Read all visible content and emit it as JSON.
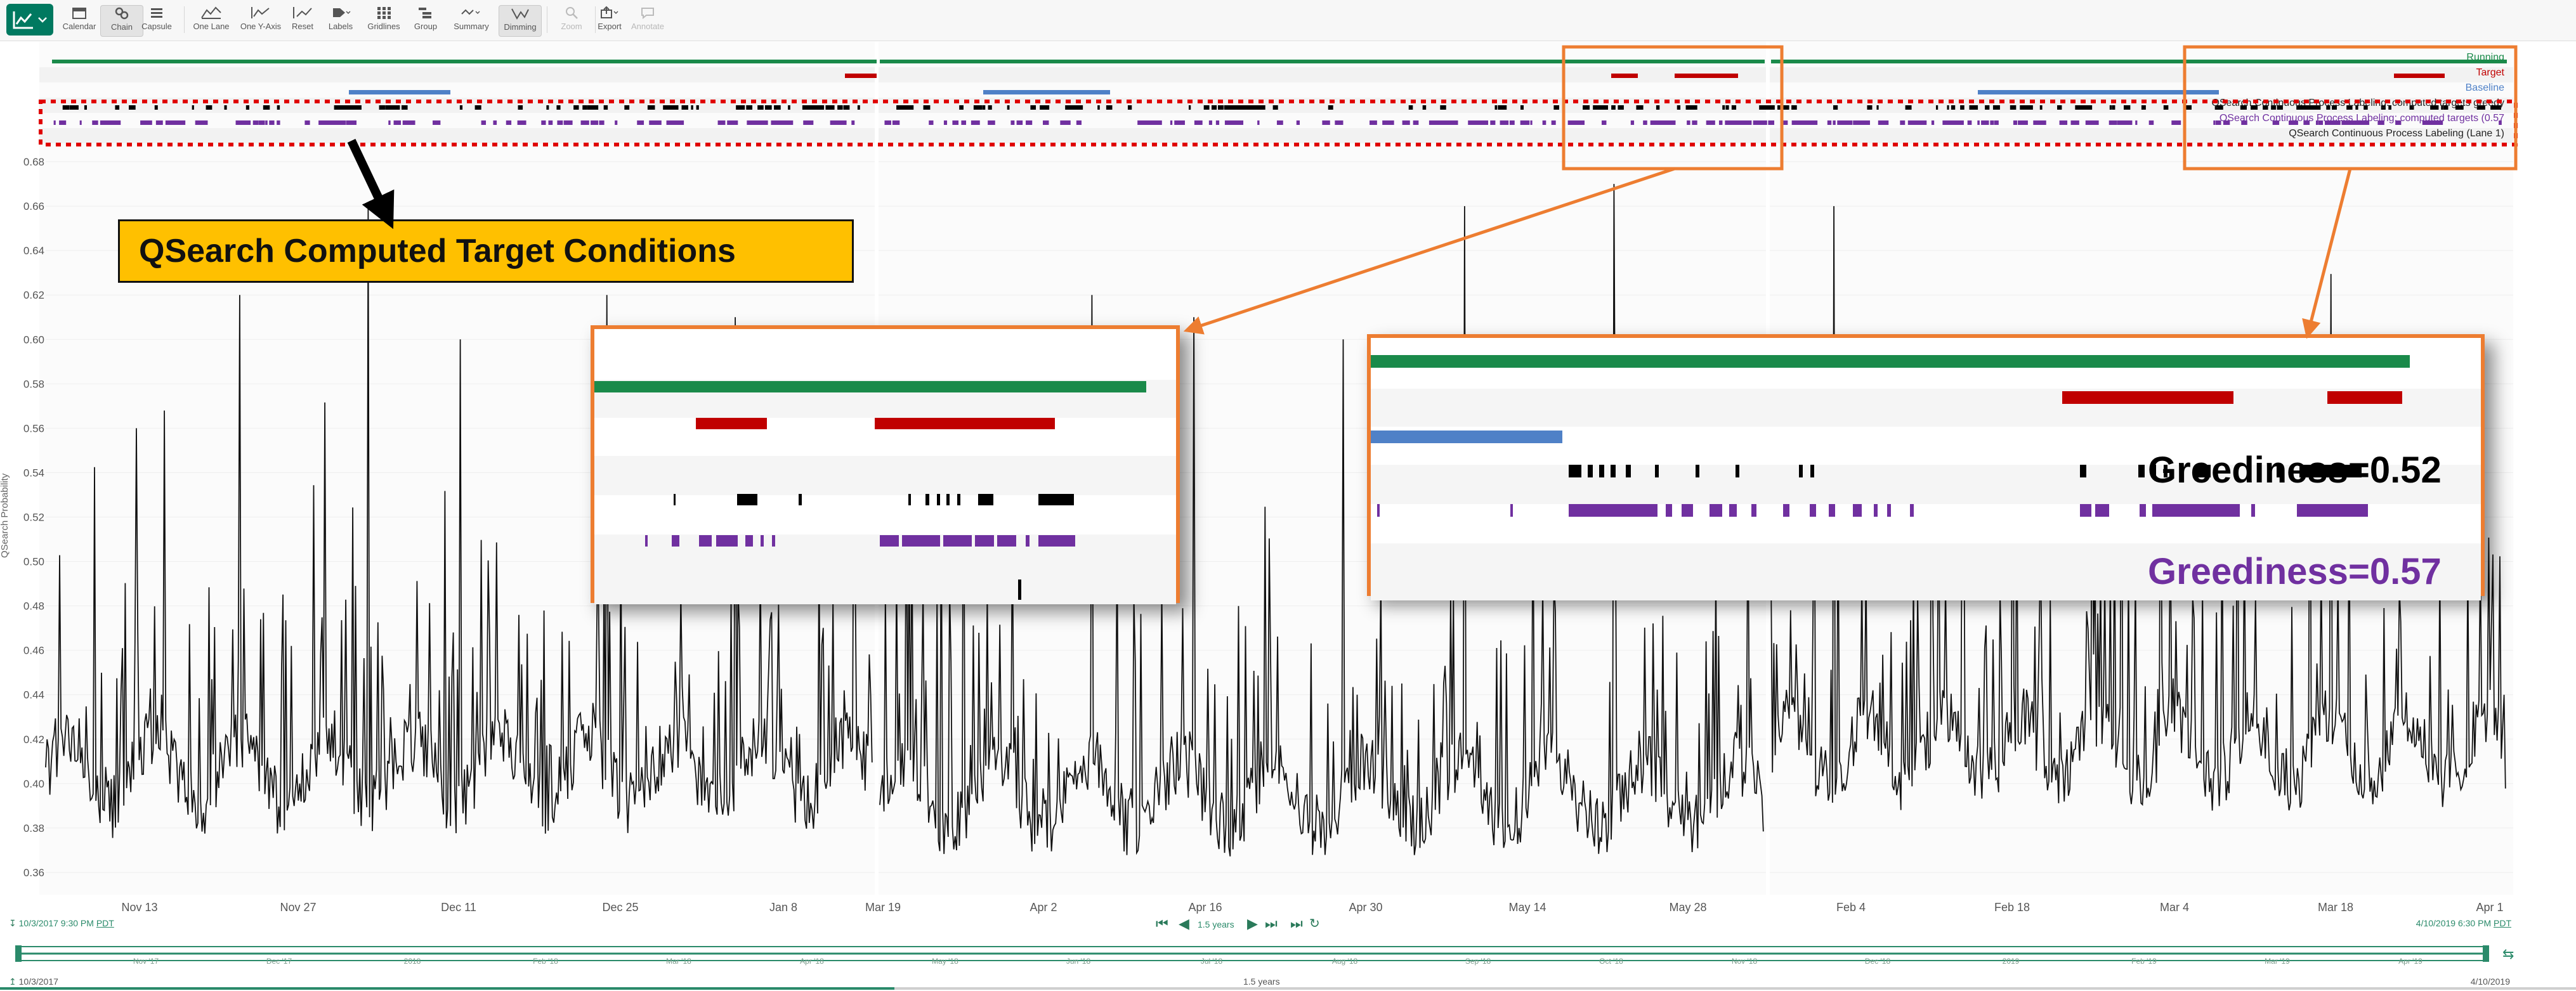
{
  "toolbar": {
    "items": [
      {
        "label": "Calendar",
        "icon": "calendar-icon"
      },
      {
        "label": "Chain",
        "icon": "chain-icon"
      },
      {
        "label": "Capsule",
        "icon": "capsule-icon"
      },
      {
        "label": "One Lane",
        "icon": "one-lane-icon"
      },
      {
        "label": "One Y-Axis",
        "icon": "one-y-axis-icon"
      },
      {
        "label": "Reset",
        "icon": "reset-icon"
      },
      {
        "label": "Labels",
        "icon": "labels-icon"
      },
      {
        "label": "Gridlines",
        "icon": "gridlines-icon"
      },
      {
        "label": "Group",
        "icon": "group-icon"
      },
      {
        "label": "Summary",
        "icon": "summary-icon"
      },
      {
        "label": "Dimming",
        "icon": "dimming-icon"
      },
      {
        "label": "Zoom",
        "icon": "zoom-icon"
      },
      {
        "label": "Export",
        "icon": "export-icon"
      },
      {
        "label": "Annotate",
        "icon": "annotate-icon"
      }
    ]
  },
  "lanes": {
    "running": "Running",
    "target": "Target",
    "baseline": "Baseline",
    "computed_greedy": "QSearch Continuous Process Labeling: computed targets greedy",
    "computed_057": "QSearch Continuous Process Labeling: computed targets (0.57",
    "lane1": "QSearch Continuous Process Labeling (Lane 1)"
  },
  "annotations": {
    "main_label": "QSearch Computed Target Conditions",
    "greediness_a": "Greediness=0.52",
    "greediness_b": "Greediness=0.57"
  },
  "colors": {
    "running": "#1a8a4a",
    "target": "#c00000",
    "baseline": "#4f81c7",
    "computed_a": "#000000",
    "computed_b": "#7030a0",
    "highlight": "#ED7D31",
    "label_box": "#FFC000",
    "nav": "#2a8a6a"
  },
  "chart_data": {
    "type": "line",
    "ylabel": "QSearch Probability",
    "y_ticks": [
      "0.36",
      "0.38",
      "0.40",
      "0.42",
      "0.44",
      "0.46",
      "0.48",
      "0.50",
      "0.52",
      "0.54",
      "0.56",
      "0.58",
      "0.60",
      "0.62",
      "0.64",
      "0.66",
      "0.68"
    ],
    "ylim": [
      0.35,
      0.69
    ],
    "x_ticks": [
      "Nov 13",
      "Nov 27",
      "Dec 11",
      "Dec 25",
      "Jan 8",
      "Mar 19",
      "Apr 2",
      "Apr 16",
      "Apr 30",
      "May 14",
      "May 28",
      "Feb 4",
      "Feb 18",
      "Mar 4",
      "Mar 18",
      "Apr 1"
    ],
    "segments": [
      {
        "period": "Nov 2017 - Jan 2018",
        "baseline": 0.39,
        "peaks": [
          0.56,
          0.62,
          0.66,
          0.6,
          0.62,
          0.61
        ]
      },
      {
        "period": "Mar 2018 - Jun 2018",
        "baseline": 0.38,
        "peaks": [
          0.59,
          0.62,
          0.61,
          0.6,
          0.66,
          0.67
        ]
      },
      {
        "period": "Jan 2019 - Apr 2019",
        "baseline": 0.4,
        "peaks": [
          0.66,
          0.59,
          0.58,
          0.6
        ]
      }
    ]
  },
  "navigation": {
    "start": "10/3/2017 9:30 PM",
    "end": "4/10/2019 6:30 PM",
    "tz": "PDT",
    "span": "1.5 years",
    "overview_start": "10/3/2017",
    "overview_end": "4/10/2019",
    "overview_span": "1.5 years",
    "overview_ticks": [
      "Nov '17",
      "Dec '17",
      "2018",
      "Feb '18",
      "Mar '18",
      "Apr '18",
      "May '18",
      "Jun '18",
      "Jul '18",
      "Aug '18",
      "Sep '18",
      "Oct '18",
      "Nov '18",
      "Dec '18",
      "2019",
      "Feb '19",
      "Mar '19",
      "Apr '19"
    ]
  }
}
